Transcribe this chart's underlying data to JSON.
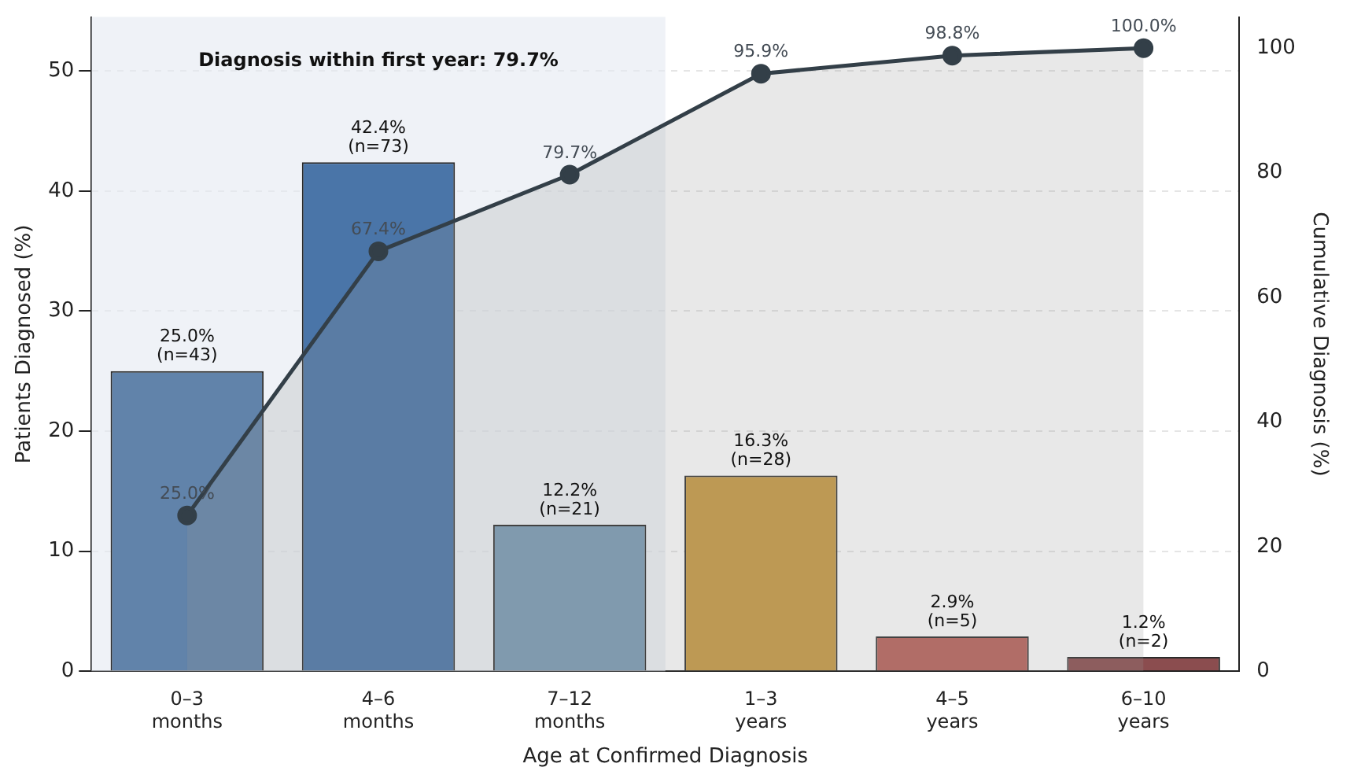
{
  "chart_data": {
    "type": "bar",
    "xlabel": "Age at Confirmed Diagnosis",
    "ylabel": "Patients Diagnosed (%)",
    "y2label": "Cumulative Diagnosis (%)",
    "categories": [
      "0–3 months",
      "4–6 months",
      "7–12 months",
      "1–3 years",
      "4–5 years",
      "6–10 years"
    ],
    "series": [
      {
        "values": [
          25.0,
          42.4,
          12.2,
          16.3,
          2.9,
          1.2
        ],
        "colors": [
          "#6183aa",
          "#4a75a8",
          "#7a9bb5",
          "#c89a42",
          "#b9625a",
          "#8b4d4f"
        ],
        "value_labels": [
          "25.0%\n(n=43)",
          "42.4%\n(n=73)",
          "12.2%\n(n=21)",
          "16.3%\n(n=28)",
          "2.9%\n(n=5)",
          "1.2%\n(n=2)"
        ]
      },
      {
        "type": "area",
        "axis": "y2",
        "color": "#333f48",
        "values": [
          25.0,
          67.4,
          79.7,
          95.9,
          98.8,
          100.0
        ],
        "value_labels": [
          "25.0%",
          "67.4%",
          "79.7%",
          "95.9%",
          "98.8%",
          "100.0%"
        ]
      }
    ],
    "ylim": [
      0,
      54.5
    ],
    "yticks": [
      0,
      10,
      20,
      30,
      40,
      50
    ],
    "y2lim": [
      0,
      105
    ],
    "y2ticks": [
      0,
      20,
      40,
      60,
      80,
      100
    ],
    "bands": [
      {
        "axis": "x",
        "from": "0–3 months",
        "to": "7–12 months",
        "label": "Diagnosis within first year: 79.7%",
        "color": "#e4eaf2"
      }
    ],
    "grid": "y",
    "legend": false,
    "marker": "circle"
  }
}
